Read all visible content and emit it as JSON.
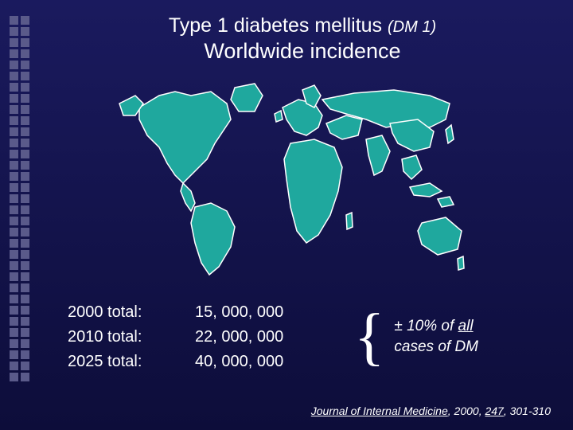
{
  "title": {
    "line1_main": "Type 1 diabetes mellitus",
    "line1_italic": "(DM 1)",
    "line2": "Worldwide incidence"
  },
  "map": {
    "land_fill": "#1fa89e",
    "land_stroke": "#ffffff",
    "stroke_width": 1.5
  },
  "stats": {
    "rows": [
      {
        "label": "2000 total:",
        "value": "15, 000, 000"
      },
      {
        "label": "2010 total:",
        "value": "22, 000, 000"
      },
      {
        "label": "2025 total:",
        "value": "40, 000, 000"
      }
    ]
  },
  "callout": {
    "prefix": "± 10% of ",
    "underlined": "all",
    "suffix": "cases of DM"
  },
  "citation": {
    "journal": "Journal of Internal Medicine",
    "year": ", 2000, ",
    "volume": "247",
    "pages": ", 301-310"
  },
  "decoration": {
    "square_color": "#5a5a8a",
    "square_rows": 33
  }
}
